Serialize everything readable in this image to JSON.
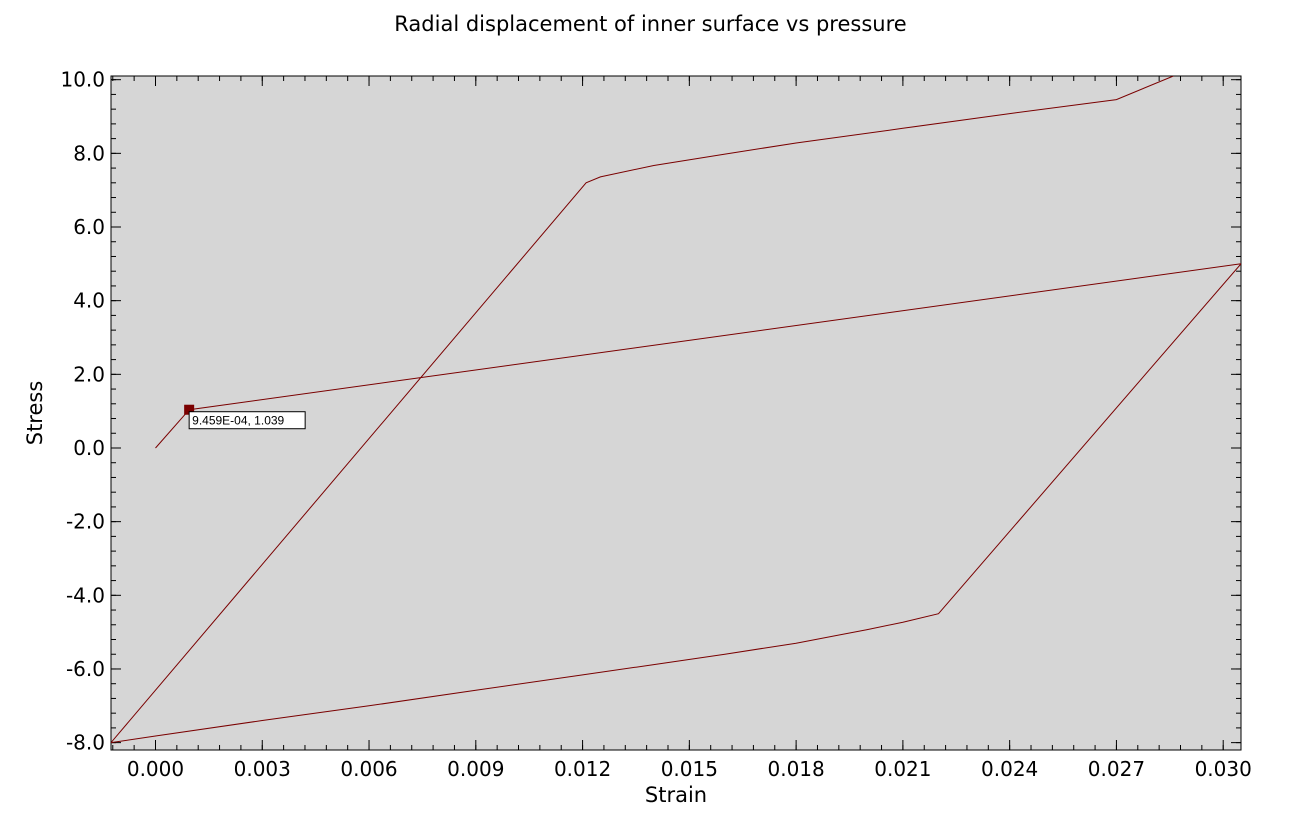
{
  "chart_data": {
    "type": "line",
    "title": "Radial displacement of inner surface vs pressure",
    "xlabel": "Strain",
    "ylabel": "Stress",
    "xlim": [
      -0.00125,
      0.0305
    ],
    "ylim": [
      -8.2,
      10.1
    ],
    "x_ticks": [
      "0.000",
      "0.003",
      "0.006",
      "0.009",
      "0.012",
      "0.015",
      "0.018",
      "0.021",
      "0.024",
      "0.027",
      "0.030"
    ],
    "y_ticks": [
      "10.0",
      "8.0",
      "6.0",
      "4.0",
      "2.0",
      "0.0",
      "-2.0",
      "-4.0",
      "-6.0",
      "-8.0"
    ],
    "grid": false,
    "background": "#d6d6d6",
    "series_color": "#7a0000",
    "series": [
      {
        "points": [
          [
            0.0,
            0.0
          ],
          [
            0.0009459,
            1.039
          ],
          [
            0.0305,
            5.0
          ],
          [
            0.022,
            -4.5
          ],
          [
            0.021,
            -4.73
          ],
          [
            0.02,
            -4.93
          ],
          [
            0.018,
            -5.3
          ],
          [
            0.016,
            -5.6
          ],
          [
            0.014,
            -5.88
          ],
          [
            0.012,
            -6.16
          ],
          [
            0.009,
            -6.58
          ],
          [
            0.006,
            -7.0
          ],
          [
            0.003,
            -7.4
          ],
          [
            0.0,
            -7.82
          ],
          [
            -0.00125,
            -8.0
          ],
          [
            0.0121,
            7.2
          ],
          [
            0.0125,
            7.36
          ],
          [
            0.014,
            7.67
          ],
          [
            0.016,
            7.98
          ],
          [
            0.018,
            8.28
          ],
          [
            0.021,
            8.68
          ],
          [
            0.024,
            9.08
          ],
          [
            0.027,
            9.46
          ],
          [
            0.0286,
            10.1
          ]
        ]
      }
    ],
    "probe": {
      "x": 0.0009459,
      "y": 1.039,
      "label": "9.459E-04, 1.039"
    }
  }
}
